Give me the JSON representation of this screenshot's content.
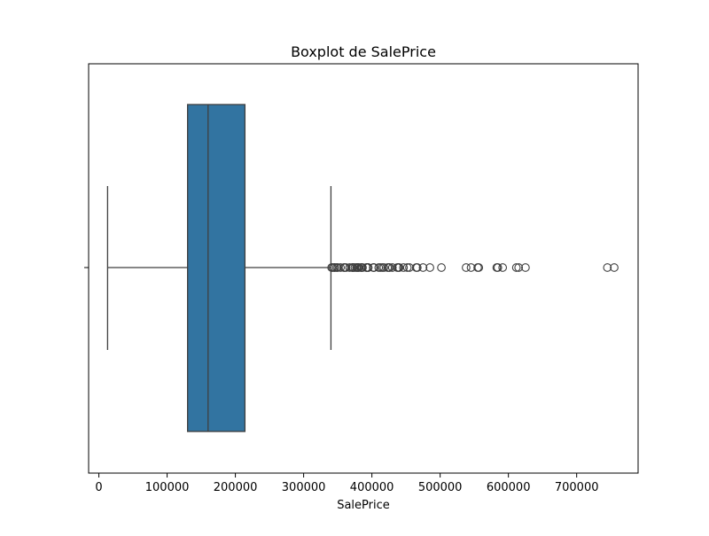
{
  "chart_data": {
    "type": "boxplot",
    "title": "Boxplot de SalePrice",
    "xlabel": "SalePrice",
    "ylabel": "",
    "xlim": [
      -15000,
      790000
    ],
    "xticks": [
      0,
      100000,
      200000,
      300000,
      400000,
      500000,
      600000,
      700000
    ],
    "xtick_labels": [
      "0",
      "100000",
      "200000",
      "300000",
      "400000",
      "500000",
      "600000",
      "700000"
    ],
    "grid": false,
    "box": {
      "whisker_low": 12789,
      "q1": 129975,
      "median": 160000,
      "q3": 214000,
      "whisker_high": 340000
    },
    "outliers": [
      341000,
      342643,
      345000,
      345474,
      348000,
      350000,
      354000,
      359100,
      360000,
      361919,
      367294,
      370878,
      372402,
      372500,
      375000,
      377426,
      378500,
      380000,
      381000,
      383970,
      385000,
      386250,
      392000,
      392500,
      394432,
      394617,
      402000,
      402861,
      403000,
      410000,
      412500,
      415298,
      417500,
      423000,
      424870,
      426000,
      430000,
      437154,
      438780,
      440000,
      446261,
      451950,
      455000,
      465000,
      466500,
      475000,
      485000,
      501837,
      538000,
      545224,
      555000,
      556581,
      582933,
      584500,
      591587,
      611657,
      615000,
      625000,
      745000,
      755000
    ],
    "colors": {
      "box_fill": "#3274a1",
      "line": "#3f3f3f"
    }
  }
}
